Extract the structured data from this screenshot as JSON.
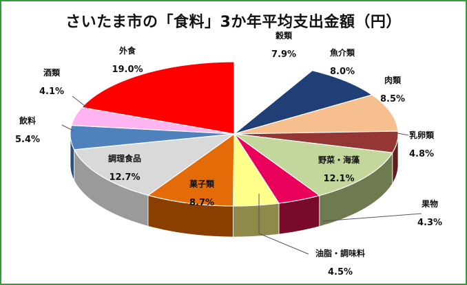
{
  "chart_data": {
    "type": "pie",
    "title": "さいたま市の「食料」3か年平均支出金額（円）",
    "slices": [
      {
        "name": "穀類",
        "value": 7.9,
        "label": "7.9%",
        "color": "#ffffff",
        "side": "#c8c8c8"
      },
      {
        "name": "魚介類",
        "value": 8.0,
        "label": "8.0%",
        "color": "#1f3f76",
        "side": "#14294d"
      },
      {
        "name": "肉類",
        "value": 8.5,
        "label": "8.5%",
        "color": "#f7be8e",
        "side": "#b5835a"
      },
      {
        "name": "乳卵類",
        "value": 4.8,
        "label": "4.8%",
        "color": "#943634",
        "side": "#5e1f1e"
      },
      {
        "name": "野菜・海藻",
        "value": 12.1,
        "label": "12.1%",
        "color": "#c3d69b",
        "side": "#6e7a4f"
      },
      {
        "name": "果物",
        "value": 4.3,
        "label": "4.3%",
        "color": "#e8005a",
        "side": "#7a0a2a"
      },
      {
        "name": "油脂・調味料",
        "value": 4.5,
        "label": "4.5%",
        "color": "#ffff8a",
        "side": "#8f8a4a"
      },
      {
        "name": "菓子類",
        "value": 8.7,
        "label": "8.7%",
        "color": "#e36c09",
        "side": "#8a3f00"
      },
      {
        "name": "調理食品",
        "value": 12.7,
        "label": "12.7%",
        "color": "#d9d9d9",
        "side": "#9a9a9a"
      },
      {
        "name": "飲料",
        "value": 5.4,
        "label": "5.4%",
        "color": "#4f81bd",
        "side": "#2f4f77"
      },
      {
        "name": "酒類",
        "value": 4.1,
        "label": "4.1%",
        "color": "#ffb3f0",
        "side": "#b07aa6"
      },
      {
        "name": "外食",
        "value": 19.0,
        "label": "19.0%",
        "color": "#ff0000",
        "side": "#a00000"
      }
    ]
  }
}
